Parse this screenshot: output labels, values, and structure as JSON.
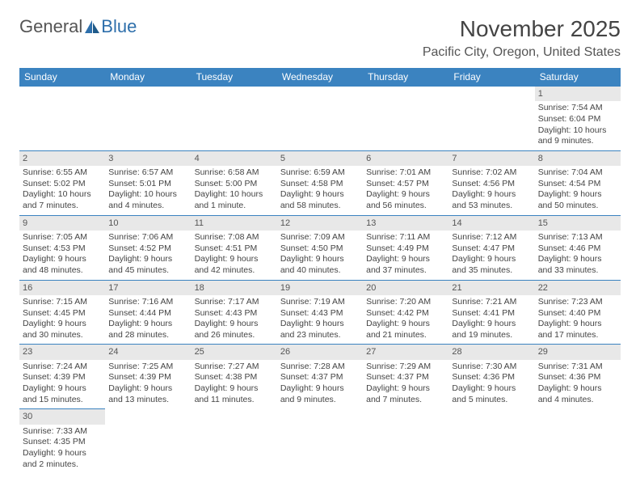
{
  "logo": {
    "text1": "General",
    "text2": "Blue"
  },
  "title": "November 2025",
  "location": "Pacific City, Oregon, United States",
  "colors": {
    "header_bg": "#3b83c0",
    "header_fg": "#ffffff",
    "divider": "#3b83c0",
    "daybar": "#e8e8e8",
    "logo_blue": "#2e6fab"
  },
  "weekdays": [
    "Sunday",
    "Monday",
    "Tuesday",
    "Wednesday",
    "Thursday",
    "Friday",
    "Saturday"
  ],
  "weeks": [
    [
      null,
      null,
      null,
      null,
      null,
      null,
      {
        "d": "1",
        "sr": "Sunrise: 7:54 AM",
        "ss": "Sunset: 6:04 PM",
        "dl1": "Daylight: 10 hours",
        "dl2": "and 9 minutes."
      }
    ],
    [
      {
        "d": "2",
        "sr": "Sunrise: 6:55 AM",
        "ss": "Sunset: 5:02 PM",
        "dl1": "Daylight: 10 hours",
        "dl2": "and 7 minutes."
      },
      {
        "d": "3",
        "sr": "Sunrise: 6:57 AM",
        "ss": "Sunset: 5:01 PM",
        "dl1": "Daylight: 10 hours",
        "dl2": "and 4 minutes."
      },
      {
        "d": "4",
        "sr": "Sunrise: 6:58 AM",
        "ss": "Sunset: 5:00 PM",
        "dl1": "Daylight: 10 hours",
        "dl2": "and 1 minute."
      },
      {
        "d": "5",
        "sr": "Sunrise: 6:59 AM",
        "ss": "Sunset: 4:58 PM",
        "dl1": "Daylight: 9 hours",
        "dl2": "and 58 minutes."
      },
      {
        "d": "6",
        "sr": "Sunrise: 7:01 AM",
        "ss": "Sunset: 4:57 PM",
        "dl1": "Daylight: 9 hours",
        "dl2": "and 56 minutes."
      },
      {
        "d": "7",
        "sr": "Sunrise: 7:02 AM",
        "ss": "Sunset: 4:56 PM",
        "dl1": "Daylight: 9 hours",
        "dl2": "and 53 minutes."
      },
      {
        "d": "8",
        "sr": "Sunrise: 7:04 AM",
        "ss": "Sunset: 4:54 PM",
        "dl1": "Daylight: 9 hours",
        "dl2": "and 50 minutes."
      }
    ],
    [
      {
        "d": "9",
        "sr": "Sunrise: 7:05 AM",
        "ss": "Sunset: 4:53 PM",
        "dl1": "Daylight: 9 hours",
        "dl2": "and 48 minutes."
      },
      {
        "d": "10",
        "sr": "Sunrise: 7:06 AM",
        "ss": "Sunset: 4:52 PM",
        "dl1": "Daylight: 9 hours",
        "dl2": "and 45 minutes."
      },
      {
        "d": "11",
        "sr": "Sunrise: 7:08 AM",
        "ss": "Sunset: 4:51 PM",
        "dl1": "Daylight: 9 hours",
        "dl2": "and 42 minutes."
      },
      {
        "d": "12",
        "sr": "Sunrise: 7:09 AM",
        "ss": "Sunset: 4:50 PM",
        "dl1": "Daylight: 9 hours",
        "dl2": "and 40 minutes."
      },
      {
        "d": "13",
        "sr": "Sunrise: 7:11 AM",
        "ss": "Sunset: 4:49 PM",
        "dl1": "Daylight: 9 hours",
        "dl2": "and 37 minutes."
      },
      {
        "d": "14",
        "sr": "Sunrise: 7:12 AM",
        "ss": "Sunset: 4:47 PM",
        "dl1": "Daylight: 9 hours",
        "dl2": "and 35 minutes."
      },
      {
        "d": "15",
        "sr": "Sunrise: 7:13 AM",
        "ss": "Sunset: 4:46 PM",
        "dl1": "Daylight: 9 hours",
        "dl2": "and 33 minutes."
      }
    ],
    [
      {
        "d": "16",
        "sr": "Sunrise: 7:15 AM",
        "ss": "Sunset: 4:45 PM",
        "dl1": "Daylight: 9 hours",
        "dl2": "and 30 minutes."
      },
      {
        "d": "17",
        "sr": "Sunrise: 7:16 AM",
        "ss": "Sunset: 4:44 PM",
        "dl1": "Daylight: 9 hours",
        "dl2": "and 28 minutes."
      },
      {
        "d": "18",
        "sr": "Sunrise: 7:17 AM",
        "ss": "Sunset: 4:43 PM",
        "dl1": "Daylight: 9 hours",
        "dl2": "and 26 minutes."
      },
      {
        "d": "19",
        "sr": "Sunrise: 7:19 AM",
        "ss": "Sunset: 4:43 PM",
        "dl1": "Daylight: 9 hours",
        "dl2": "and 23 minutes."
      },
      {
        "d": "20",
        "sr": "Sunrise: 7:20 AM",
        "ss": "Sunset: 4:42 PM",
        "dl1": "Daylight: 9 hours",
        "dl2": "and 21 minutes."
      },
      {
        "d": "21",
        "sr": "Sunrise: 7:21 AM",
        "ss": "Sunset: 4:41 PM",
        "dl1": "Daylight: 9 hours",
        "dl2": "and 19 minutes."
      },
      {
        "d": "22",
        "sr": "Sunrise: 7:23 AM",
        "ss": "Sunset: 4:40 PM",
        "dl1": "Daylight: 9 hours",
        "dl2": "and 17 minutes."
      }
    ],
    [
      {
        "d": "23",
        "sr": "Sunrise: 7:24 AM",
        "ss": "Sunset: 4:39 PM",
        "dl1": "Daylight: 9 hours",
        "dl2": "and 15 minutes."
      },
      {
        "d": "24",
        "sr": "Sunrise: 7:25 AM",
        "ss": "Sunset: 4:39 PM",
        "dl1": "Daylight: 9 hours",
        "dl2": "and 13 minutes."
      },
      {
        "d": "25",
        "sr": "Sunrise: 7:27 AM",
        "ss": "Sunset: 4:38 PM",
        "dl1": "Daylight: 9 hours",
        "dl2": "and 11 minutes."
      },
      {
        "d": "26",
        "sr": "Sunrise: 7:28 AM",
        "ss": "Sunset: 4:37 PM",
        "dl1": "Daylight: 9 hours",
        "dl2": "and 9 minutes."
      },
      {
        "d": "27",
        "sr": "Sunrise: 7:29 AM",
        "ss": "Sunset: 4:37 PM",
        "dl1": "Daylight: 9 hours",
        "dl2": "and 7 minutes."
      },
      {
        "d": "28",
        "sr": "Sunrise: 7:30 AM",
        "ss": "Sunset: 4:36 PM",
        "dl1": "Daylight: 9 hours",
        "dl2": "and 5 minutes."
      },
      {
        "d": "29",
        "sr": "Sunrise: 7:31 AM",
        "ss": "Sunset: 4:36 PM",
        "dl1": "Daylight: 9 hours",
        "dl2": "and 4 minutes."
      }
    ],
    [
      {
        "d": "30",
        "sr": "Sunrise: 7:33 AM",
        "ss": "Sunset: 4:35 PM",
        "dl1": "Daylight: 9 hours",
        "dl2": "and 2 minutes."
      },
      null,
      null,
      null,
      null,
      null,
      null
    ]
  ]
}
